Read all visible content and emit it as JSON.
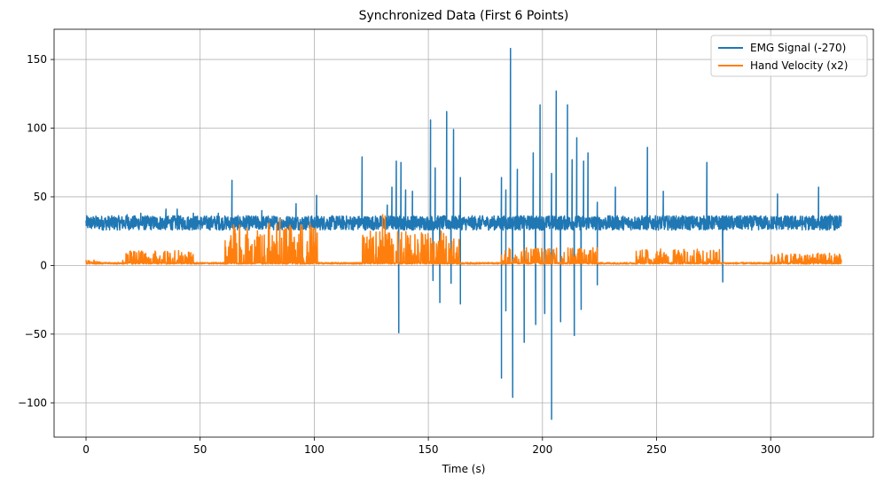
{
  "chart_data": {
    "type": "line",
    "title": "Synchronized Data (First 6 Points)",
    "xlabel": "Time (s)",
    "ylabel": "",
    "xlim": [
      -14,
      345
    ],
    "ylim": [
      -125,
      172
    ],
    "xticks": [
      0,
      50,
      100,
      150,
      200,
      250,
      300
    ],
    "yticks": [
      -100,
      -50,
      0,
      50,
      100,
      150
    ],
    "xtick_labels": [
      "0",
      "50",
      "100",
      "150",
      "200",
      "250",
      "300"
    ],
    "ytick_labels": [
      "−100",
      "−50",
      "0",
      "50",
      "100",
      "150"
    ],
    "grid": true,
    "legend_position": "top-right",
    "series": [
      {
        "name": "EMG Signal (-270)",
        "color": "#1f77b4",
        "baseline": 31,
        "band": [
          24,
          38
        ],
        "x_range": [
          0,
          331
        ],
        "spikes": [
          {
            "x": 1,
            "y": 35
          },
          {
            "x": 18,
            "y": 37
          },
          {
            "x": 24,
            "y": 38
          },
          {
            "x": 35,
            "y": 41
          },
          {
            "x": 40,
            "y": 41
          },
          {
            "x": 47,
            "y": 38
          },
          {
            "x": 58,
            "y": 38
          },
          {
            "x": 64,
            "y": 62
          },
          {
            "x": 77,
            "y": 40
          },
          {
            "x": 92,
            "y": 45
          },
          {
            "x": 101,
            "y": 51
          },
          {
            "x": 121,
            "y": 79
          },
          {
            "x": 132,
            "y": 44
          },
          {
            "x": 134,
            "y": 57
          },
          {
            "x": 136,
            "y": 76
          },
          {
            "x": 138,
            "y": 75
          },
          {
            "x": 140,
            "y": 55
          },
          {
            "x": 143,
            "y": 54
          },
          {
            "x": 151,
            "y": 106
          },
          {
            "x": 153,
            "y": 71
          },
          {
            "x": 158,
            "y": 112
          },
          {
            "x": 161,
            "y": 99
          },
          {
            "x": 164,
            "y": 64
          },
          {
            "x": 182,
            "y": 64
          },
          {
            "x": 184,
            "y": 55
          },
          {
            "x": 186,
            "y": 158
          },
          {
            "x": 189,
            "y": 70
          },
          {
            "x": 196,
            "y": 82
          },
          {
            "x": 199,
            "y": 117
          },
          {
            "x": 204,
            "y": 67
          },
          {
            "x": 206,
            "y": 127
          },
          {
            "x": 211,
            "y": 117
          },
          {
            "x": 213,
            "y": 77
          },
          {
            "x": 215,
            "y": 93
          },
          {
            "x": 218,
            "y": 76
          },
          {
            "x": 220,
            "y": 82
          },
          {
            "x": 224,
            "y": 46
          },
          {
            "x": 232,
            "y": 57
          },
          {
            "x": 246,
            "y": 86
          },
          {
            "x": 253,
            "y": 54
          },
          {
            "x": 272,
            "y": 75
          },
          {
            "x": 303,
            "y": 52
          },
          {
            "x": 321,
            "y": 57
          },
          {
            "x": 326,
            "y": 37
          }
        ],
        "dips": [
          {
            "x": 137,
            "y": -49
          },
          {
            "x": 152,
            "y": -11
          },
          {
            "x": 155,
            "y": -27
          },
          {
            "x": 160,
            "y": -13
          },
          {
            "x": 164,
            "y": -28
          },
          {
            "x": 182,
            "y": -82
          },
          {
            "x": 184,
            "y": -33
          },
          {
            "x": 187,
            "y": -96
          },
          {
            "x": 192,
            "y": -56
          },
          {
            "x": 197,
            "y": -43
          },
          {
            "x": 201,
            "y": -35
          },
          {
            "x": 204,
            "y": -112
          },
          {
            "x": 208,
            "y": -41
          },
          {
            "x": 214,
            "y": -51
          },
          {
            "x": 217,
            "y": -32
          },
          {
            "x": 224,
            "y": -14
          },
          {
            "x": 279,
            "y": -12
          }
        ]
      },
      {
        "name": "Hand Velocity (x2)",
        "color": "#ff7f0e",
        "baseline": 1,
        "x_range": [
          0,
          331
        ],
        "activity": [
          {
            "x": [
              0,
              6
            ],
            "amp": 3
          },
          {
            "x": [
              16,
              47
            ],
            "amp": 10
          },
          {
            "x": [
              61,
              102
            ],
            "amp": 30
          },
          {
            "x": [
              121,
              164
            ],
            "amp": 24
          },
          {
            "x": [
              182,
              224
            ],
            "amp": 12
          },
          {
            "x": [
              241,
              278
            ],
            "amp": 11
          },
          {
            "x": [
              300,
              331
            ],
            "amp": 8
          }
        ],
        "peaks": [
          {
            "x": 61,
            "y": 18
          },
          {
            "x": 65,
            "y": 27
          },
          {
            "x": 85,
            "y": 34
          },
          {
            "x": 130,
            "y": 37
          },
          {
            "x": 131,
            "y": 36
          }
        ]
      }
    ]
  }
}
